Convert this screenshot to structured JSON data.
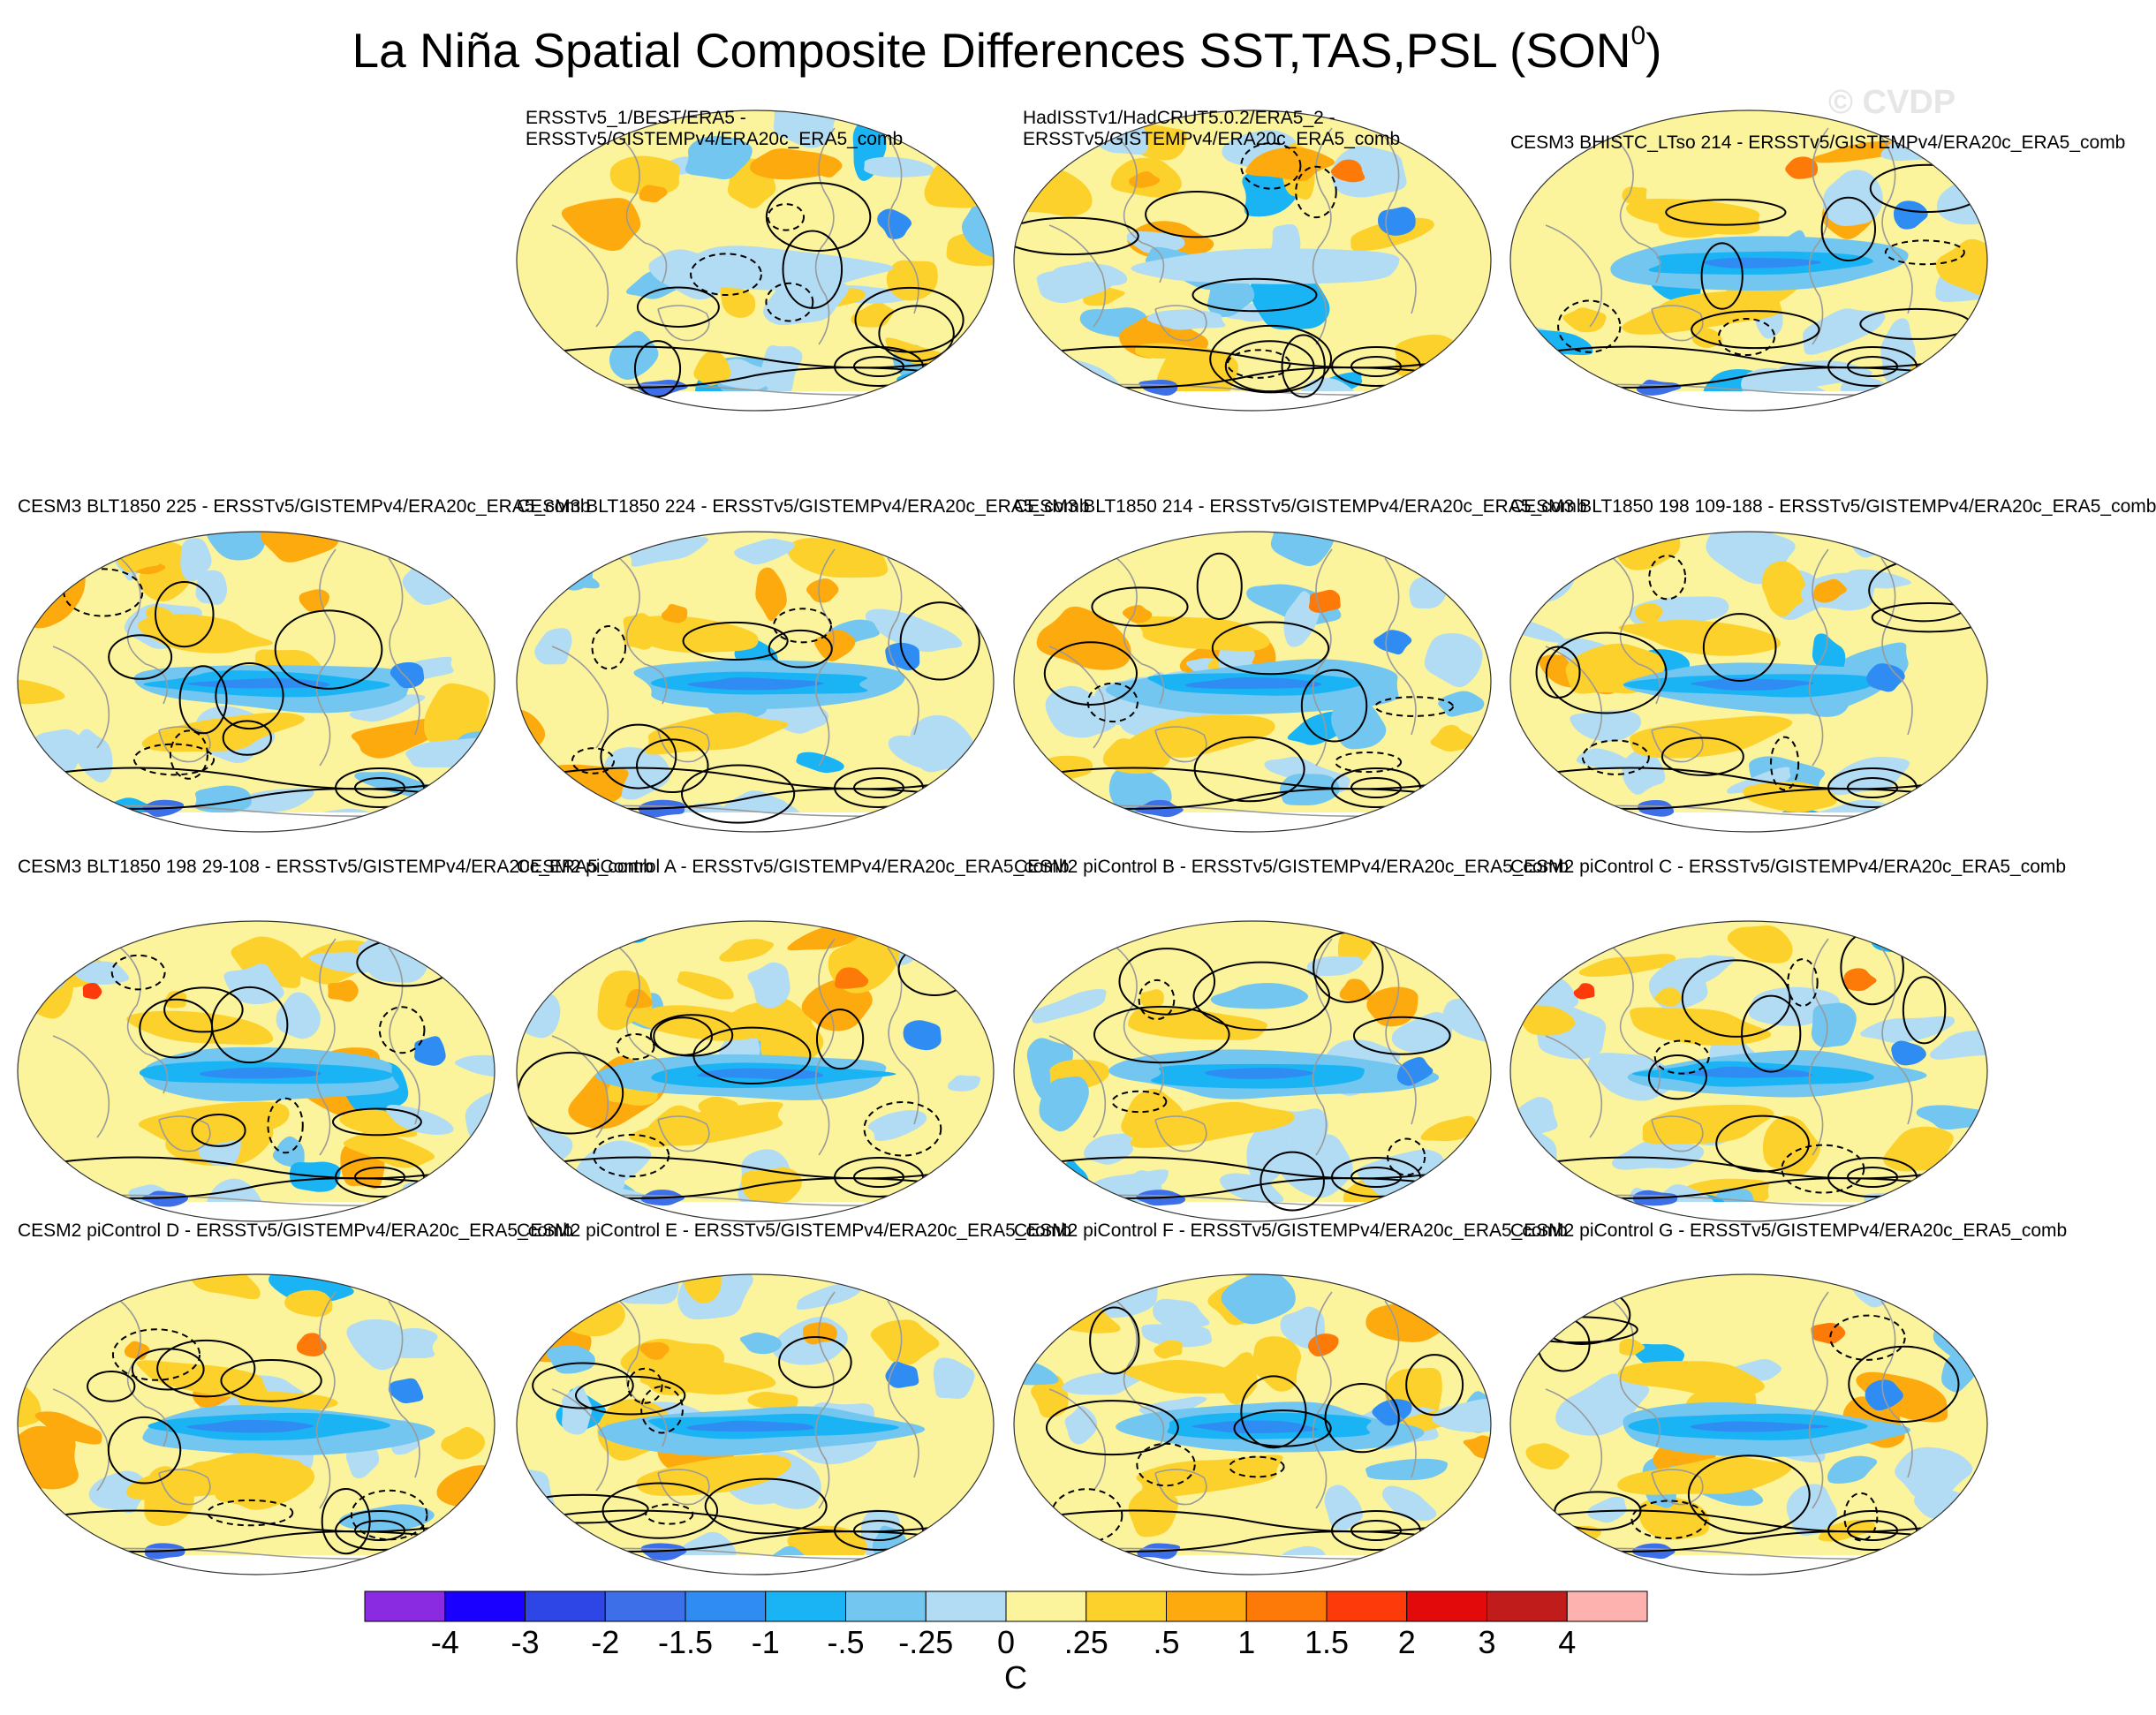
{
  "title": "La Niña Spatial Composite Differences SST,TAS,PSL (SON",
  "title_superscript": "0",
  "title_suffix": ")",
  "watermark": "© CVDP",
  "panels": [
    {
      "row": 0,
      "col": 1,
      "title": "ERSSTv5_1/BEST/ERA5 -\nERSSTv5/GISTEMPv4/ERA20c_ERA5_comb",
      "pattern": "obs"
    },
    {
      "row": 0,
      "col": 2,
      "title": "HadISSTv1/HadCRUT5.0.2/ERA5_2 -\nERSSTv5/GISTEMPv4/ERA20c_ERA5_comb",
      "pattern": "obs"
    },
    {
      "row": 0,
      "col": 3,
      "title": "CESM3 BHISTC_LTso 214 - ERSSTv5/GISTEMPv4/ERA20c_ERA5_comb",
      "pattern": "model"
    },
    {
      "row": 1,
      "col": 0,
      "title": "CESM3 BLT1850 225 - ERSSTv5/GISTEMPv4/ERA20c_ERA5_comb",
      "pattern": "model"
    },
    {
      "row": 1,
      "col": 1,
      "title": "CESM3 BLT1850 224 - ERSSTv5/GISTEMPv4/ERA20c_ERA5_comb",
      "pattern": "model"
    },
    {
      "row": 1,
      "col": 2,
      "title": "CESM3 BLT1850 214 - ERSSTv5/GISTEMPv4/ERA20c_ERA5_comb",
      "pattern": "model"
    },
    {
      "row": 1,
      "col": 3,
      "title": "CESM3 BLT1850 198 109-188 - ERSSTv5/GISTEMPv4/ERA20c_ERA5_comb",
      "pattern": "model"
    },
    {
      "row": 2,
      "col": 0,
      "title": "CESM3 BLT1850 198 29-108 - ERSSTv5/GISTEMPv4/ERA20c_ERA5_comb",
      "pattern": "model"
    },
    {
      "row": 2,
      "col": 1,
      "title": "CESM2 piControl A - ERSSTv5/GISTEMPv4/ERA20c_ERA5_comb",
      "pattern": "model"
    },
    {
      "row": 2,
      "col": 2,
      "title": "CESM2 piControl B - ERSSTv5/GISTEMPv4/ERA20c_ERA5_comb",
      "pattern": "model"
    },
    {
      "row": 2,
      "col": 3,
      "title": "CESM2 piControl C - ERSSTv5/GISTEMPv4/ERA20c_ERA5_comb",
      "pattern": "model"
    },
    {
      "row": 3,
      "col": 0,
      "title": "CESM2 piControl D - ERSSTv5/GISTEMPv4/ERA20c_ERA5_comb",
      "pattern": "model"
    },
    {
      "row": 3,
      "col": 1,
      "title": "CESM2 piControl E - ERSSTv5/GISTEMPv4/ERA20c_ERA5_comb",
      "pattern": "model"
    },
    {
      "row": 3,
      "col": 2,
      "title": "CESM2 piControl F - ERSSTv5/GISTEMPv4/ERA20c_ERA5_comb",
      "pattern": "model"
    },
    {
      "row": 3,
      "col": 3,
      "title": "CESM2 piControl G - ERSSTv5/GISTEMPv4/ERA20c_ERA5_comb",
      "pattern": "model"
    }
  ],
  "colorbar": {
    "colors": [
      "#8a2be2",
      "#1a00ff",
      "#2f46e6",
      "#3d6fe8",
      "#2e8cf2",
      "#1ab4f5",
      "#72c6ef",
      "#b1dcf3",
      "#fbf49c",
      "#fdd12c",
      "#fdaa0f",
      "#fd7a09",
      "#fd3b0a",
      "#e20a0a",
      "#c01c1c",
      "#feb2b0"
    ],
    "labels": [
      "-4",
      "-3",
      "-2",
      "-1.5",
      "-1",
      "-.5",
      "-.25",
      "0",
      ".25",
      ".5",
      "1",
      "1.5",
      "2",
      "3",
      "4"
    ],
    "units": "C"
  }
}
